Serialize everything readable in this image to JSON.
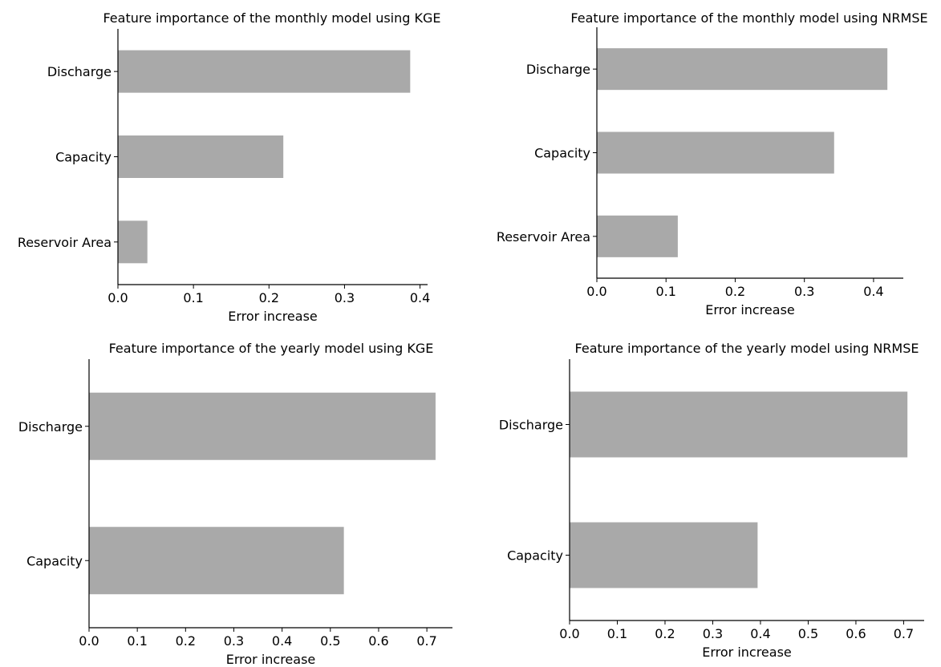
{
  "chart_data": [
    {
      "type": "bar",
      "orientation": "horizontal",
      "title": "Feature importance of the monthly model using KGE",
      "xlabel": "Error increase",
      "ylabel": "",
      "categories": [
        "Discharge",
        "Capacity",
        "Reservoir Area"
      ],
      "values": [
        0.387,
        0.219,
        0.039
      ],
      "xlim": [
        0,
        0.41
      ],
      "xticks": [
        0.0,
        0.1,
        0.2,
        0.3,
        0.4
      ],
      "xtick_labels": [
        "0.0",
        "0.1",
        "0.2",
        "0.3",
        "0.4"
      ],
      "bar_color": "#a9a9a9",
      "grid": false,
      "legend": "none"
    },
    {
      "type": "bar",
      "orientation": "horizontal",
      "title": "Feature importance of the monthly model using NRMSE",
      "xlabel": "Error increase",
      "ylabel": "",
      "categories": [
        "Discharge",
        "Capacity",
        "Reservoir Area"
      ],
      "values": [
        0.42,
        0.343,
        0.117
      ],
      "xlim": [
        0,
        0.443
      ],
      "xticks": [
        0.0,
        0.1,
        0.2,
        0.3,
        0.4
      ],
      "xtick_labels": [
        "0.0",
        "0.1",
        "0.2",
        "0.3",
        "0.4"
      ],
      "bar_color": "#a9a9a9",
      "grid": false,
      "legend": "none"
    },
    {
      "type": "bar",
      "orientation": "horizontal",
      "title": "Feature importance of the yearly model using KGE",
      "xlabel": "Error increase",
      "ylabel": "",
      "categories": [
        "Discharge",
        "Capacity"
      ],
      "values": [
        0.718,
        0.528
      ],
      "xlim": [
        0,
        0.753
      ],
      "xticks": [
        0.0,
        0.1,
        0.2,
        0.3,
        0.4,
        0.5,
        0.6,
        0.7
      ],
      "xtick_labels": [
        "0.0",
        "0.1",
        "0.2",
        "0.3",
        "0.4",
        "0.5",
        "0.6",
        "0.7"
      ],
      "bar_color": "#a9a9a9",
      "grid": false,
      "legend": "none"
    },
    {
      "type": "bar",
      "orientation": "horizontal",
      "title": "Feature importance of the yearly model using NRMSE",
      "xlabel": "Error increase",
      "ylabel": "",
      "categories": [
        "Discharge",
        "Capacity"
      ],
      "values": [
        0.708,
        0.394
      ],
      "xlim": [
        0,
        0.743
      ],
      "xticks": [
        0.0,
        0.1,
        0.2,
        0.3,
        0.4,
        0.5,
        0.6,
        0.7
      ],
      "xtick_labels": [
        "0.0",
        "0.1",
        "0.2",
        "0.3",
        "0.4",
        "0.5",
        "0.6",
        "0.7"
      ],
      "bar_color": "#a9a9a9",
      "grid": false,
      "legend": "none"
    }
  ]
}
